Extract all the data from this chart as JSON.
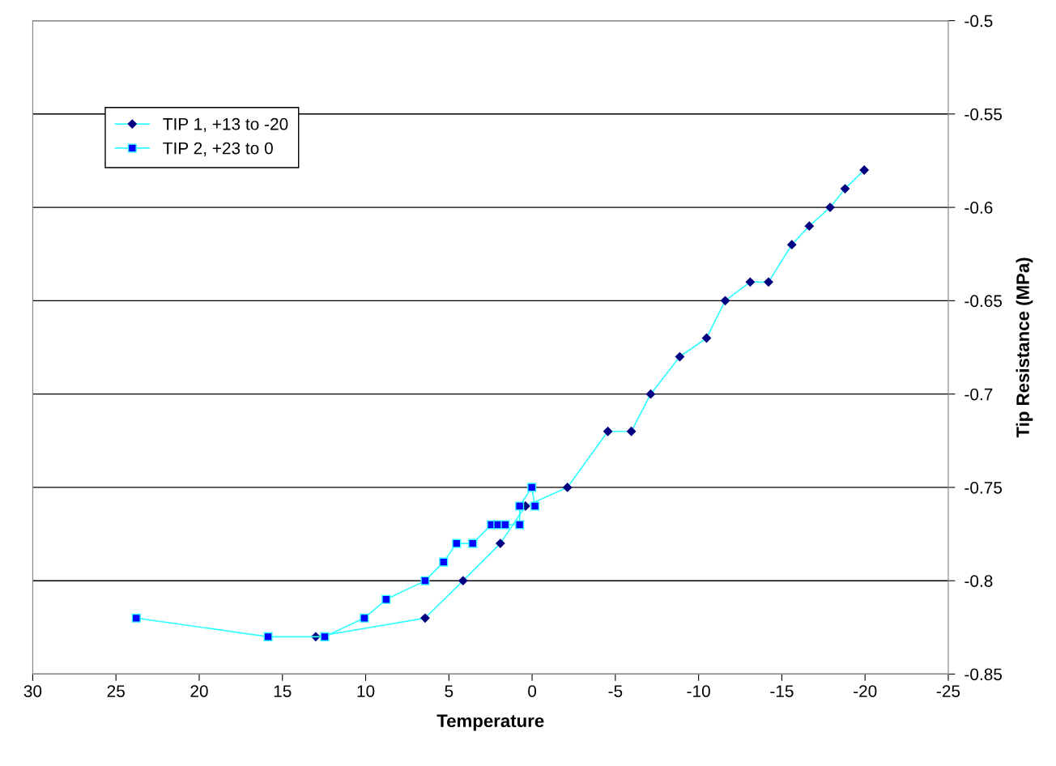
{
  "chart_data": {
    "type": "line",
    "xlabel": "Temperature",
    "ylabel": "Tip Resistance (MPa)",
    "xlim": [
      30,
      -25
    ],
    "xticks": [
      30,
      25,
      20,
      15,
      10,
      5,
      0,
      -5,
      -10,
      -15,
      -20,
      -25
    ],
    "ylim": [
      -0.85,
      -0.5
    ],
    "yticks": [
      -0.85,
      -0.8,
      -0.75,
      -0.7,
      -0.65,
      -0.6,
      -0.55,
      -0.5
    ],
    "grid": "y",
    "legend": "top left",
    "series": [
      {
        "name": "TIP 1, +13 to -20",
        "color": "#33ffff",
        "marker": "diamond",
        "x": [
          13.0,
          6.43,
          4.15,
          1.91,
          0.4,
          -2.12,
          -4.55,
          -5.96,
          -7.12,
          -8.87,
          -10.48,
          -11.6,
          -13.1,
          -14.2,
          -15.6,
          -16.65,
          -17.9,
          -18.8,
          -19.95
        ],
        "values": [
          -0.83,
          -0.82,
          -0.8,
          -0.78,
          -0.76,
          -0.75,
          -0.72,
          -0.72,
          -0.7,
          -0.68,
          -0.67,
          -0.65,
          -0.64,
          -0.64,
          -0.62,
          -0.61,
          -0.6,
          -0.59,
          -0.58
        ]
      },
      {
        "name": "TIP 2, +23 to 0",
        "color": "#33ffff",
        "marker": "square",
        "x": [
          23.78,
          15.86,
          12.46,
          10.08,
          8.77,
          6.43,
          5.32,
          4.54,
          3.57,
          2.45,
          2.06,
          1.62,
          0.75,
          0.75,
          0.02,
          -0.17
        ],
        "values": [
          -0.82,
          -0.83,
          -0.83,
          -0.82,
          -0.81,
          -0.8,
          -0.79,
          -0.78,
          -0.78,
          -0.77,
          -0.77,
          -0.77,
          -0.77,
          -0.76,
          -0.75,
          -0.76
        ]
      }
    ]
  }
}
